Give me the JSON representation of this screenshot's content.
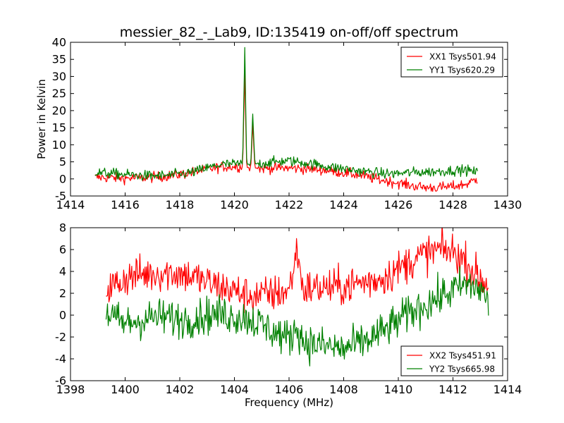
{
  "chart_data": [
    {
      "type": "line",
      "title": "messier_82_-_Lab9, ID:135419 on-off/off spectrum",
      "xlabel": "",
      "ylabel": "Power in Kelvin",
      "xlim": [
        1414,
        1430
      ],
      "ylim": [
        -5,
        40
      ],
      "xticks": [
        1414,
        1416,
        1418,
        1420,
        1422,
        1424,
        1426,
        1428,
        1430
      ],
      "yticks": [
        -5,
        0,
        5,
        10,
        15,
        20,
        25,
        30,
        35,
        40
      ],
      "legend_position": "top-right",
      "series": [
        {
          "name": "XX1 Tsys501.94",
          "color": "#ff0000",
          "x": [
            1414.9,
            1415.5,
            1416.0,
            1416.5,
            1417.0,
            1417.5,
            1418.0,
            1418.5,
            1419.0,
            1419.5,
            1420.0,
            1420.3,
            1420.38,
            1420.45,
            1420.6,
            1420.67,
            1420.75,
            1421.0,
            1421.5,
            1422.0,
            1422.5,
            1423.0,
            1423.5,
            1424.0,
            1424.5,
            1425.0,
            1425.5,
            1426.0,
            1426.5,
            1427.0,
            1427.5,
            1428.0,
            1428.5,
            1428.9
          ],
          "y": [
            0.5,
            0.3,
            0.2,
            0.3,
            0.5,
            0.8,
            1.3,
            2.0,
            2.8,
            3.5,
            3.6,
            3.5,
            31.0,
            3.4,
            3.2,
            16.0,
            3.2,
            3.1,
            3.2,
            3.2,
            3.0,
            2.8,
            2.4,
            1.8,
            1.2,
            0.3,
            -0.5,
            -1.2,
            -2.0,
            -2.5,
            -2.5,
            -2.2,
            -1.5,
            0.0
          ]
        },
        {
          "name": "YY1 Tsys620.29",
          "color": "#008000",
          "x": [
            1414.9,
            1415.5,
            1416.0,
            1416.5,
            1417.0,
            1417.5,
            1418.0,
            1418.5,
            1419.0,
            1419.5,
            1420.0,
            1420.3,
            1420.38,
            1420.45,
            1420.6,
            1420.67,
            1420.75,
            1421.0,
            1421.5,
            1422.0,
            1422.5,
            1423.0,
            1423.5,
            1424.0,
            1424.5,
            1425.0,
            1425.5,
            1426.0,
            1426.5,
            1427.0,
            1427.5,
            1428.0,
            1428.5,
            1428.9
          ],
          "y": [
            1.8,
            1.6,
            1.3,
            1.0,
            0.9,
            1.0,
            1.4,
            2.0,
            3.2,
            4.2,
            4.4,
            4.3,
            38.5,
            4.3,
            4.3,
            19.0,
            4.4,
            4.5,
            5.0,
            5.3,
            4.8,
            4.2,
            3.5,
            3.0,
            2.4,
            2.0,
            1.5,
            1.6,
            1.9,
            2.0,
            2.2,
            2.5,
            2.6,
            1.8
          ]
        }
      ]
    },
    {
      "type": "line",
      "title": "",
      "xlabel": "Frequency (MHz)",
      "ylabel": "",
      "xlim": [
        1398,
        1414
      ],
      "ylim": [
        -6,
        8
      ],
      "xticks": [
        1398,
        1400,
        1402,
        1404,
        1406,
        1408,
        1410,
        1412,
        1414
      ],
      "yticks": [
        -6,
        -4,
        -2,
        0,
        2,
        4,
        6,
        8
      ],
      "legend_position": "bottom-right",
      "series": [
        {
          "name": "XX2 Tsys451.91",
          "color": "#ff0000",
          "x": [
            1399.3,
            1399.7,
            1400.0,
            1400.5,
            1401.0,
            1401.5,
            1402.0,
            1402.5,
            1403.0,
            1403.5,
            1404.0,
            1404.5,
            1405.0,
            1405.5,
            1406.0,
            1406.3,
            1406.5,
            1407.0,
            1407.5,
            1408.0,
            1408.5,
            1409.0,
            1409.5,
            1410.0,
            1410.5,
            1411.0,
            1411.5,
            1412.0,
            1412.5,
            1413.0,
            1413.3
          ],
          "y": [
            2.5,
            2.8,
            3.4,
            3.7,
            3.8,
            3.9,
            3.8,
            3.5,
            3.0,
            2.6,
            2.2,
            1.8,
            1.8,
            2.0,
            2.2,
            6.0,
            2.4,
            2.5,
            2.5,
            2.6,
            2.9,
            3.1,
            3.5,
            4.2,
            5.0,
            5.6,
            6.0,
            5.8,
            4.8,
            3.2,
            2.8
          ]
        },
        {
          "name": "YY2 Tsys665.98",
          "color": "#008000",
          "x": [
            1399.3,
            1399.7,
            1400.0,
            1400.5,
            1401.0,
            1401.5,
            1402.0,
            1402.5,
            1403.0,
            1403.5,
            1404.0,
            1404.5,
            1405.0,
            1405.5,
            1406.0,
            1406.3,
            1406.5,
            1407.0,
            1407.5,
            1408.0,
            1408.5,
            1409.0,
            1409.5,
            1410.0,
            1410.5,
            1411.0,
            1411.5,
            1412.0,
            1412.5,
            1413.0,
            1413.3
          ],
          "y": [
            0.3,
            -0.5,
            -0.8,
            -0.5,
            -0.2,
            -0.2,
            -0.4,
            -0.3,
            0.0,
            0.1,
            -0.1,
            -0.3,
            -0.9,
            -1.6,
            -2.2,
            -1.0,
            -2.4,
            -2.7,
            -2.9,
            -3.1,
            -2.7,
            -2.1,
            -1.4,
            -0.5,
            0.3,
            1.0,
            1.6,
            2.3,
            2.8,
            2.4,
            1.2
          ]
        }
      ]
    }
  ]
}
